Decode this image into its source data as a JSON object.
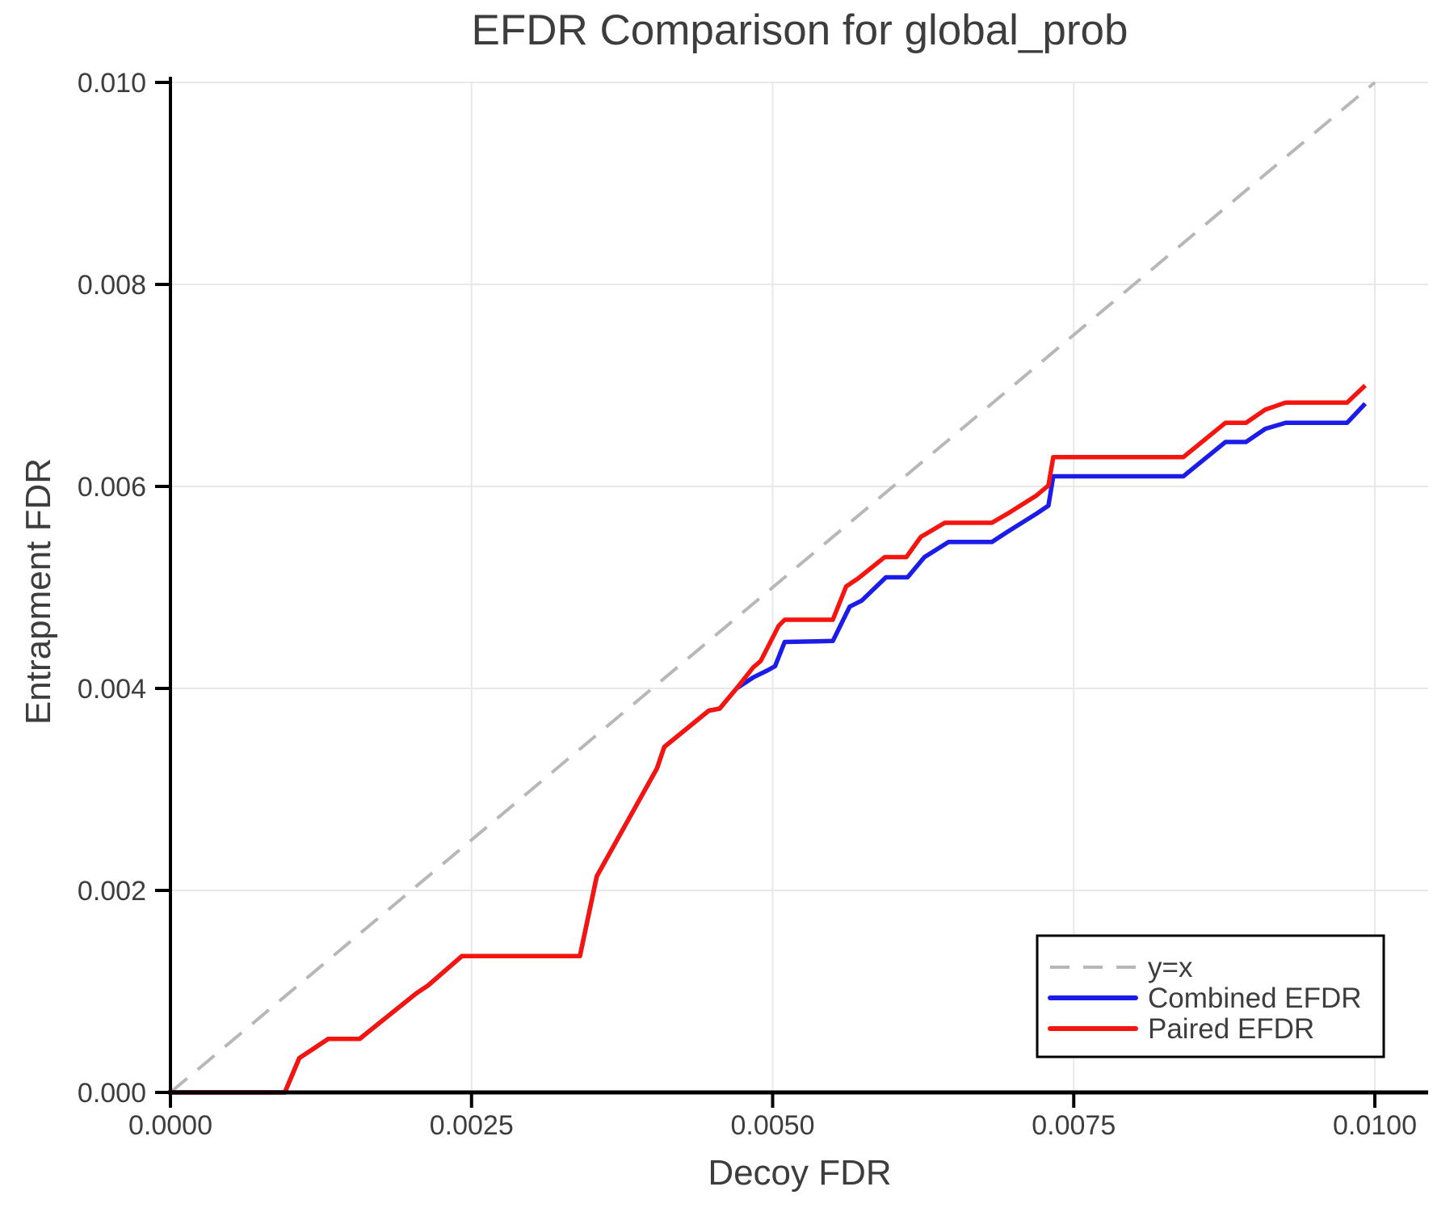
{
  "title": "EFDR Comparison for global_prob",
  "xlabel": "Decoy FDR",
  "ylabel": "Entrapment FDR",
  "colors": {
    "paired": "#f5150f",
    "combined": "#1c1ce8",
    "identity": "#b7b7b7",
    "grid": "#e8e8e8",
    "text": "#3d3d3d",
    "axis": "#000000",
    "background": "#ffffff",
    "legend_border": "#000000"
  },
  "chart_data": {
    "type": "line",
    "title": "EFDR Comparison for global_prob",
    "xlabel": "Decoy FDR",
    "ylabel": "Entrapment FDR",
    "xlim": [
      0.0,
      0.01
    ],
    "ylim": [
      0.0,
      0.01
    ],
    "xticks": [
      "0.0000",
      "0.0025",
      "0.0050",
      "0.0075",
      "0.0100"
    ],
    "yticks": [
      "0.000",
      "0.002",
      "0.004",
      "0.006",
      "0.008",
      "0.010"
    ],
    "grid": true,
    "legend_position": "lower right",
    "series": [
      {
        "name": "y=x",
        "style": "dashed",
        "color_key": "identity",
        "width": 4,
        "points": [
          [
            0.0,
            0.0
          ],
          [
            0.01,
            0.01
          ]
        ]
      },
      {
        "name": "Combined EFDR",
        "style": "solid",
        "color_key": "combined",
        "width": 5.5,
        "points": [
          [
            0.0,
            0.0
          ],
          [
            0.00095,
            0.0
          ],
          [
            0.00107,
            0.00034
          ],
          [
            0.00131,
            0.00053
          ],
          [
            0.00157,
            0.00053
          ],
          [
            0.00204,
            0.00098
          ],
          [
            0.00214,
            0.00106
          ],
          [
            0.00242,
            0.00135
          ],
          [
            0.0034,
            0.00135
          ],
          [
            0.00354,
            0.00214
          ],
          [
            0.00404,
            0.00321
          ],
          [
            0.0041,
            0.00342
          ],
          [
            0.00447,
            0.00378
          ],
          [
            0.00456,
            0.0038
          ],
          [
            0.0047,
            0.004
          ],
          [
            0.00484,
            0.00411
          ],
          [
            0.00496,
            0.00418
          ],
          [
            0.00502,
            0.00422
          ],
          [
            0.0051,
            0.00446
          ],
          [
            0.0055,
            0.00447
          ],
          [
            0.00564,
            0.00481
          ],
          [
            0.00574,
            0.00487
          ],
          [
            0.00594,
            0.0051
          ],
          [
            0.00612,
            0.0051
          ],
          [
            0.00626,
            0.0053
          ],
          [
            0.00646,
            0.00545
          ],
          [
            0.00682,
            0.00545
          ],
          [
            0.00695,
            0.00555
          ],
          [
            0.00719,
            0.00573
          ],
          [
            0.00729,
            0.00581
          ],
          [
            0.00733,
            0.0061
          ],
          [
            0.00841,
            0.0061
          ],
          [
            0.00876,
            0.00644
          ],
          [
            0.00893,
            0.00644
          ],
          [
            0.00909,
            0.00657
          ],
          [
            0.00926,
            0.00663
          ],
          [
            0.00977,
            0.00663
          ],
          [
            0.00992,
            0.00682
          ]
        ]
      },
      {
        "name": "Paired EFDR",
        "style": "solid",
        "color_key": "paired",
        "width": 5.5,
        "points": [
          [
            0.0,
            0.0
          ],
          [
            0.00095,
            0.0
          ],
          [
            0.00107,
            0.00034
          ],
          [
            0.00131,
            0.00053
          ],
          [
            0.00157,
            0.00053
          ],
          [
            0.00204,
            0.00098
          ],
          [
            0.00214,
            0.00106
          ],
          [
            0.00242,
            0.00135
          ],
          [
            0.0034,
            0.00135
          ],
          [
            0.00354,
            0.00214
          ],
          [
            0.00404,
            0.00321
          ],
          [
            0.0041,
            0.00342
          ],
          [
            0.00447,
            0.00378
          ],
          [
            0.00456,
            0.0038
          ],
          [
            0.0047,
            0.004
          ],
          [
            0.00484,
            0.00421
          ],
          [
            0.0049,
            0.00427
          ],
          [
            0.00505,
            0.00462
          ],
          [
            0.0051,
            0.00468
          ],
          [
            0.0055,
            0.00468
          ],
          [
            0.00561,
            0.00501
          ],
          [
            0.00571,
            0.00509
          ],
          [
            0.00593,
            0.0053
          ],
          [
            0.00611,
            0.0053
          ],
          [
            0.00623,
            0.0055
          ],
          [
            0.00643,
            0.00564
          ],
          [
            0.00682,
            0.00564
          ],
          [
            0.00695,
            0.00573
          ],
          [
            0.00719,
            0.00591
          ],
          [
            0.00729,
            0.00601
          ],
          [
            0.00733,
            0.00629
          ],
          [
            0.00841,
            0.00629
          ],
          [
            0.00876,
            0.00663
          ],
          [
            0.00893,
            0.00663
          ],
          [
            0.00909,
            0.00676
          ],
          [
            0.00926,
            0.00683
          ],
          [
            0.00977,
            0.00683
          ],
          [
            0.00992,
            0.007
          ]
        ]
      }
    ]
  }
}
